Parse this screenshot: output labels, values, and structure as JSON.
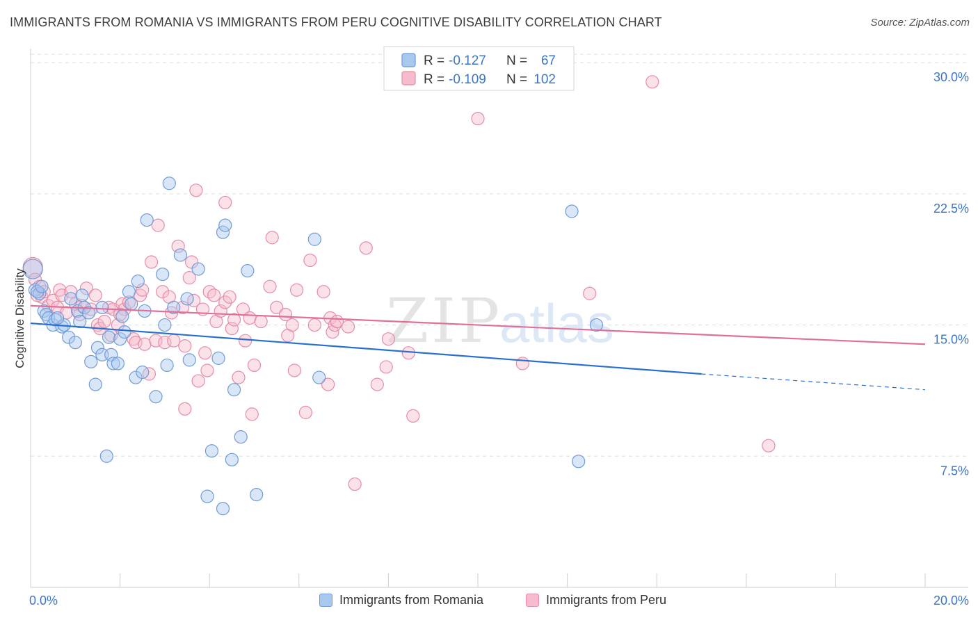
{
  "title": "IMMIGRANTS FROM ROMANIA VS IMMIGRANTS FROM PERU COGNITIVE DISABILITY CORRELATION CHART",
  "source": "Source: ZipAtlas.com",
  "watermark": {
    "zip": "ZIP",
    "atlas": "atlas"
  },
  "colors": {
    "romania_fill": "#a9c8f0",
    "romania_stroke": "#6f9bd8",
    "romania_line": "#2a6fcf",
    "peru_fill": "#f6bccd",
    "peru_stroke": "#e58ca8",
    "peru_line": "#e0709a",
    "tick_label": "#3b75c4",
    "grid": "#dcdcdc"
  },
  "legend_top": {
    "rows": [
      {
        "r_label": "R =",
        "r_value": "-0.127",
        "n_label": "N =",
        "n_value": "67"
      },
      {
        "r_label": "R =",
        "r_value": "-0.109",
        "n_label": "N =",
        "n_value": "102"
      }
    ]
  },
  "legend_bottom": {
    "items": [
      {
        "label": "Immigrants from Romania"
      },
      {
        "label": "Immigrants from Peru"
      }
    ]
  },
  "chart_data": {
    "type": "scatter",
    "title": "IMMIGRANTS FROM ROMANIA VS IMMIGRANTS FROM PERU COGNITIVE DISABILITY CORRELATION CHART",
    "xlabel": "",
    "ylabel": "Cognitive Disability",
    "xlim": [
      0,
      20
    ],
    "ylim": [
      0,
      30.8
    ],
    "x_tick_labels": [
      "0.0%",
      "20.0%"
    ],
    "y_ticks": [
      7.5,
      15.0,
      22.5,
      30.0
    ],
    "y_tick_labels": [
      "7.5%",
      "15.0%",
      "22.5%",
      "30.0%"
    ],
    "grid": "horizontal dashed",
    "legend_placement": "top-center",
    "series": [
      {
        "name": "Immigrants from Romania",
        "trend": {
          "x": [
            0,
            15.0
          ],
          "y": [
            15.1,
            12.2
          ],
          "dashed_extension": {
            "x": [
              15.0,
              20.0
            ],
            "y": [
              12.2,
              11.3
            ]
          }
        },
        "points": [
          [
            0.05,
            18.2
          ],
          [
            0.1,
            17.0
          ],
          [
            0.2,
            16.8
          ],
          [
            0.3,
            15.8
          ],
          [
            0.35,
            15.6
          ],
          [
            0.4,
            15.4
          ],
          [
            0.5,
            15.0
          ],
          [
            0.55,
            15.3
          ],
          [
            0.7,
            14.9
          ],
          [
            0.75,
            15.0
          ],
          [
            0.85,
            14.3
          ],
          [
            0.9,
            16.5
          ],
          [
            1.0,
            14.0
          ],
          [
            1.05,
            15.8
          ],
          [
            1.15,
            16.7
          ],
          [
            1.2,
            16.0
          ],
          [
            1.3,
            15.7
          ],
          [
            1.35,
            12.9
          ],
          [
            1.45,
            11.6
          ],
          [
            1.5,
            13.7
          ],
          [
            1.6,
            16.0
          ],
          [
            1.6,
            13.3
          ],
          [
            1.7,
            7.5
          ],
          [
            1.75,
            14.3
          ],
          [
            1.8,
            13.3
          ],
          [
            1.85,
            12.8
          ],
          [
            1.95,
            12.8
          ],
          [
            2.0,
            14.2
          ],
          [
            2.05,
            15.5
          ],
          [
            2.2,
            16.9
          ],
          [
            2.25,
            16.2
          ],
          [
            2.35,
            12.0
          ],
          [
            2.4,
            17.5
          ],
          [
            2.5,
            12.3
          ],
          [
            2.55,
            15.8
          ],
          [
            2.6,
            21.0
          ],
          [
            2.8,
            10.9
          ],
          [
            2.95,
            17.9
          ],
          [
            3.0,
            15.0
          ],
          [
            3.05,
            12.7
          ],
          [
            3.1,
            23.1
          ],
          [
            3.2,
            16.0
          ],
          [
            3.35,
            19.0
          ],
          [
            3.5,
            16.5
          ],
          [
            3.55,
            13.0
          ],
          [
            3.75,
            18.2
          ],
          [
            3.95,
            5.2
          ],
          [
            4.05,
            7.8
          ],
          [
            4.2,
            13.1
          ],
          [
            4.3,
            4.5
          ],
          [
            4.3,
            20.3
          ],
          [
            4.35,
            20.7
          ],
          [
            4.5,
            7.3
          ],
          [
            4.55,
            11.3
          ],
          [
            4.7,
            8.6
          ],
          [
            4.85,
            18.1
          ],
          [
            5.05,
            5.3
          ],
          [
            6.35,
            19.9
          ],
          [
            6.45,
            12.0
          ],
          [
            12.1,
            21.5
          ],
          [
            12.25,
            7.2
          ],
          [
            12.65,
            15.0
          ],
          [
            0.15,
            16.9
          ],
          [
            0.6,
            15.4
          ],
          [
            0.25,
            17.2
          ],
          [
            2.1,
            14.6
          ],
          [
            1.1,
            15.2
          ]
        ]
      },
      {
        "name": "Immigrants from Peru",
        "trend": {
          "x": [
            0,
            20.0
          ],
          "y": [
            16.1,
            13.9
          ]
        },
        "points": [
          [
            0.05,
            18.3
          ],
          [
            0.1,
            17.6
          ],
          [
            0.2,
            17.2
          ],
          [
            0.25,
            16.6
          ],
          [
            0.3,
            16.9
          ],
          [
            0.4,
            16.1
          ],
          [
            0.5,
            16.4
          ],
          [
            0.6,
            16.0
          ],
          [
            0.65,
            17.0
          ],
          [
            0.7,
            16.7
          ],
          [
            0.8,
            15.7
          ],
          [
            0.9,
            16.9
          ],
          [
            1.0,
            16.2
          ],
          [
            1.1,
            15.6
          ],
          [
            1.15,
            16.1
          ],
          [
            1.25,
            17.1
          ],
          [
            1.35,
            15.9
          ],
          [
            1.45,
            16.7
          ],
          [
            1.5,
            15.0
          ],
          [
            1.55,
            14.8
          ],
          [
            1.65,
            15.2
          ],
          [
            1.75,
            16.0
          ],
          [
            1.8,
            14.4
          ],
          [
            1.85,
            15.9
          ],
          [
            1.95,
            15.0
          ],
          [
            2.05,
            16.2
          ],
          [
            2.1,
            15.9
          ],
          [
            2.2,
            16.3
          ],
          [
            2.3,
            14.2
          ],
          [
            2.35,
            14.0
          ],
          [
            2.45,
            16.7
          ],
          [
            2.5,
            17.0
          ],
          [
            2.55,
            13.9
          ],
          [
            2.65,
            12.2
          ],
          [
            2.7,
            18.6
          ],
          [
            2.8,
            14.1
          ],
          [
            2.85,
            20.7
          ],
          [
            2.95,
            16.9
          ],
          [
            3.0,
            14.0
          ],
          [
            3.1,
            16.6
          ],
          [
            3.15,
            15.7
          ],
          [
            3.2,
            14.1
          ],
          [
            3.3,
            19.5
          ],
          [
            3.4,
            16.0
          ],
          [
            3.45,
            13.8
          ],
          [
            3.45,
            10.2
          ],
          [
            3.55,
            17.7
          ],
          [
            3.6,
            18.6
          ],
          [
            3.65,
            16.4
          ],
          [
            3.7,
            22.7
          ],
          [
            3.75,
            11.8
          ],
          [
            3.85,
            15.9
          ],
          [
            3.9,
            13.4
          ],
          [
            3.95,
            12.4
          ],
          [
            4.0,
            16.9
          ],
          [
            4.1,
            16.7
          ],
          [
            4.15,
            15.2
          ],
          [
            4.25,
            15.8
          ],
          [
            4.35,
            16.3
          ],
          [
            4.35,
            22.0
          ],
          [
            4.45,
            16.6
          ],
          [
            4.5,
            14.8
          ],
          [
            4.55,
            15.3
          ],
          [
            4.65,
            12.0
          ],
          [
            4.75,
            15.9
          ],
          [
            4.8,
            14.1
          ],
          [
            4.9,
            15.4
          ],
          [
            4.95,
            9.9
          ],
          [
            5.0,
            12.7
          ],
          [
            5.15,
            15.2
          ],
          [
            5.35,
            17.2
          ],
          [
            5.4,
            20.0
          ],
          [
            5.5,
            16.0
          ],
          [
            5.7,
            15.6
          ],
          [
            5.75,
            14.4
          ],
          [
            5.85,
            15.0
          ],
          [
            5.9,
            12.4
          ],
          [
            5.95,
            17.0
          ],
          [
            6.15,
            10.0
          ],
          [
            6.25,
            18.7
          ],
          [
            6.35,
            15.0
          ],
          [
            6.55,
            16.9
          ],
          [
            6.65,
            11.6
          ],
          [
            6.7,
            15.4
          ],
          [
            6.75,
            14.6
          ],
          [
            6.8,
            15.0
          ],
          [
            6.85,
            15.2
          ],
          [
            7.1,
            14.9
          ],
          [
            7.25,
            5.9
          ],
          [
            7.5,
            19.4
          ],
          [
            7.75,
            11.6
          ],
          [
            7.95,
            12.6
          ],
          [
            8.0,
            14.2
          ],
          [
            8.45,
            13.4
          ],
          [
            8.55,
            9.8
          ],
          [
            10.0,
            26.8
          ],
          [
            11.0,
            12.8
          ],
          [
            12.5,
            16.8
          ],
          [
            13.9,
            28.9
          ],
          [
            16.5,
            8.1
          ],
          [
            0.15,
            16.7
          ],
          [
            2.0,
            15.6
          ]
        ]
      }
    ]
  }
}
